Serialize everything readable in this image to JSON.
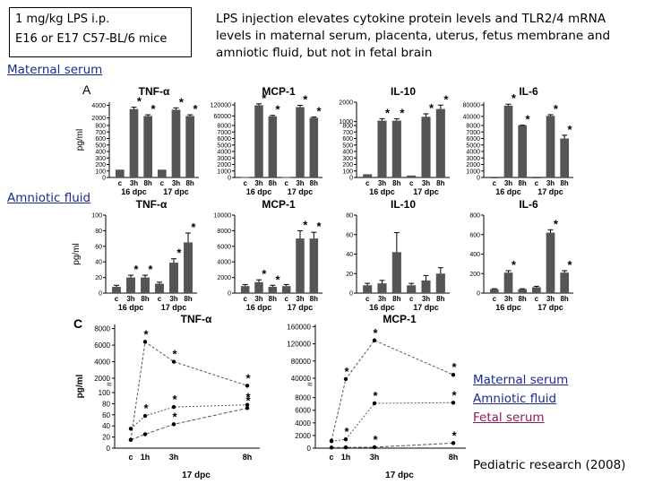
{
  "note": {
    "line1": "1 mg/kg LPS i.p.",
    "line2": "E16 or E17 C57-BL/6 mice"
  },
  "headline": "LPS injection elevates cytokine protein levels and TLR2/4 mRNA levels in maternal serum, placenta, uterus, fetus membrane and amniotic fluid, but not in fetal brain",
  "sections": {
    "maternal": "Maternal serum",
    "amniotic": "Amniotic fluid"
  },
  "panel_letters": {
    "a": "A",
    "c": "C"
  },
  "legend": {
    "maternal": "Maternal serum",
    "amniotic": "Amniotic fluid",
    "fetal": "Fetal serum"
  },
  "citation": "Pediatric research (2008)",
  "colors": {
    "legend_blue": "#1c2a8c",
    "legend_fetal": "#8c1c52",
    "bar": "#555555"
  },
  "chart_data": [
    {
      "type": "bar",
      "id": "maternal-tnf",
      "title": "TNF-α",
      "ylabel": "pg/ml",
      "ticks": [
        0,
        100,
        200,
        300,
        400,
        500,
        600,
        700,
        800,
        2000,
        4000
      ],
      "ylim_display": [
        0,
        4500
      ],
      "categories": [
        "c",
        "3h",
        "8h",
        "c",
        "3h",
        "8h"
      ],
      "groups": [
        "16 dpc",
        "17 dpc"
      ],
      "values": [
        120,
        3400,
        2300,
        120,
        3300,
        2300
      ],
      "errors": [
        0,
        300,
        200,
        0,
        300,
        200
      ],
      "stars": [
        false,
        true,
        true,
        false,
        true,
        true
      ]
    },
    {
      "type": "bar",
      "id": "maternal-mcp1",
      "title": "MCP-1",
      "ylabel": "",
      "ticks": [
        0,
        1000,
        2000,
        3000,
        4000,
        5000,
        6000,
        7000,
        8000,
        60000,
        120000
      ],
      "ylim_display": [
        0,
        135000
      ],
      "categories": [
        "c",
        "3h",
        "8h",
        "c",
        "3h",
        "8h"
      ],
      "groups": [
        "16 dpc",
        "17 dpc"
      ],
      "values": [
        60,
        118000,
        58000,
        60,
        108000,
        50000
      ],
      "errors": [
        0,
        8000,
        5000,
        0,
        10000,
        4000
      ],
      "stars": [
        false,
        true,
        true,
        false,
        true,
        true
      ]
    },
    {
      "type": "bar",
      "id": "maternal-il10",
      "title": "IL-10",
      "ylabel": "",
      "ticks": [
        0,
        100,
        200,
        300,
        400,
        500,
        600,
        700,
        800,
        1000,
        2000
      ],
      "ylim_display": [
        0,
        2000
      ],
      "categories": [
        "c",
        "3h",
        "8h",
        "c",
        "3h",
        "8h"
      ],
      "groups": [
        "16 dpc",
        "17 dpc"
      ],
      "values": [
        50,
        1050,
        1050,
        30,
        1250,
        1650
      ],
      "errors": [
        0,
        100,
        100,
        0,
        150,
        200
      ],
      "stars": [
        false,
        true,
        true,
        false,
        true,
        true
      ]
    },
    {
      "type": "bar",
      "id": "maternal-il6",
      "title": "IL-6",
      "ylabel": "",
      "ticks": [
        0,
        1000,
        2000,
        3000,
        4000,
        5000,
        6000,
        7000,
        8000,
        40000,
        80000
      ],
      "ylim_display": [
        0,
        90000
      ],
      "categories": [
        "c",
        "3h",
        "8h",
        "c",
        "3h",
        "8h"
      ],
      "groups": [
        "16 dpc",
        "17 dpc"
      ],
      "values": [
        0,
        78000,
        8500,
        0,
        42000,
        6000
      ],
      "errors": [
        0,
        5000,
        500,
        0,
        4000,
        500
      ],
      "stars": [
        false,
        true,
        true,
        false,
        true,
        true
      ]
    },
    {
      "type": "bar",
      "id": "amniotic-tnf",
      "title": "TNF-α",
      "ylabel": "pg/ml",
      "ticks": [
        0,
        20,
        40,
        60,
        80,
        100
      ],
      "ylim": [
        0,
        100
      ],
      "categories": [
        "c",
        "3h",
        "8h",
        "c",
        "3h",
        "8h"
      ],
      "groups": [
        "16 dpc",
        "17 dpc"
      ],
      "values": [
        8,
        20,
        20,
        12,
        39,
        65
      ],
      "errors": [
        2,
        3,
        3,
        2,
        5,
        12
      ],
      "stars": [
        false,
        true,
        true,
        false,
        true,
        true
      ]
    },
    {
      "type": "bar",
      "id": "amniotic-mcp1",
      "title": "MCP-1",
      "ylabel": "",
      "ticks": [
        0,
        2000,
        4000,
        6000,
        8000,
        10000
      ],
      "ylim": [
        0,
        10000
      ],
      "categories": [
        "c",
        "3h",
        "8h",
        "c",
        "3h",
        "8h"
      ],
      "groups": [
        "16 dpc",
        "17 dpc"
      ],
      "values": [
        900,
        1400,
        800,
        900,
        7000,
        7000
      ],
      "errors": [
        200,
        300,
        200,
        200,
        1000,
        800
      ],
      "stars": [
        false,
        true,
        true,
        false,
        true,
        true
      ]
    },
    {
      "type": "bar",
      "id": "amniotic-il10",
      "title": "IL-10",
      "ylabel": "",
      "ticks": [
        0,
        20,
        40,
        60,
        80
      ],
      "ylim": [
        0,
        80
      ],
      "categories": [
        "c",
        "3h",
        "8h",
        "c",
        "3h",
        "8h"
      ],
      "groups": [
        "16 dpc",
        "17 dpc"
      ],
      "values": [
        8,
        10,
        42,
        8,
        13,
        20
      ],
      "errors": [
        2,
        3,
        20,
        2,
        5,
        6
      ],
      "stars": [
        false,
        false,
        false,
        false,
        false,
        false
      ]
    },
    {
      "type": "bar",
      "id": "amniotic-il6",
      "title": "IL-6",
      "ylabel": "",
      "ticks": [
        0,
        200,
        400,
        600,
        800
      ],
      "ylim": [
        0,
        800
      ],
      "categories": [
        "c",
        "3h",
        "8h",
        "c",
        "3h",
        "8h"
      ],
      "groups": [
        "16 dpc",
        "17 dpc"
      ],
      "values": [
        40,
        210,
        40,
        60,
        620,
        210
      ],
      "errors": [
        5,
        20,
        5,
        10,
        30,
        20
      ],
      "stars": [
        false,
        true,
        false,
        false,
        true,
        true
      ]
    },
    {
      "type": "line",
      "id": "c-tnf",
      "title": "TNF-α",
      "ylabel": "pg/ml",
      "xlabel": "17 dpc",
      "x": [
        "c",
        "1h",
        "3h",
        "8h"
      ],
      "ticks_upper": [
        2000,
        4000,
        6000,
        8000
      ],
      "ticks_lower": [
        0,
        20,
        40,
        60,
        80,
        100
      ],
      "series": [
        {
          "name": "Maternal serum",
          "values": [
            15,
            6400,
            4000,
            1100
          ],
          "stars": [
            false,
            true,
            true,
            true
          ]
        },
        {
          "name": "Amniotic fluid",
          "values": [
            35,
            58,
            74,
            78
          ],
          "stars": [
            false,
            true,
            true,
            true
          ]
        },
        {
          "name": "Fetal serum",
          "values": [
            15,
            25,
            43,
            72
          ],
          "stars": [
            false,
            false,
            true,
            true
          ]
        }
      ]
    },
    {
      "type": "line",
      "id": "c-mcp1",
      "title": "MCP-1",
      "ylabel": "",
      "xlabel": "17 dpc",
      "x": [
        "c",
        "1h",
        "3h",
        "8h"
      ],
      "ticks_upper": [
        40000,
        80000,
        120000,
        160000
      ],
      "ticks_lower": [
        0,
        2000,
        4000,
        6000,
        8000
      ],
      "series": [
        {
          "name": "Maternal serum",
          "values": [
            1200,
            38000,
            128000,
            48000
          ],
          "stars": [
            false,
            true,
            true,
            true
          ]
        },
        {
          "name": "Amniotic fluid",
          "values": [
            1100,
            1400,
            7100,
            7200
          ],
          "stars": [
            false,
            true,
            true,
            true
          ]
        },
        {
          "name": "Fetal serum",
          "values": [
            100,
            120,
            150,
            800
          ],
          "stars": [
            false,
            false,
            true,
            true
          ]
        }
      ]
    }
  ]
}
